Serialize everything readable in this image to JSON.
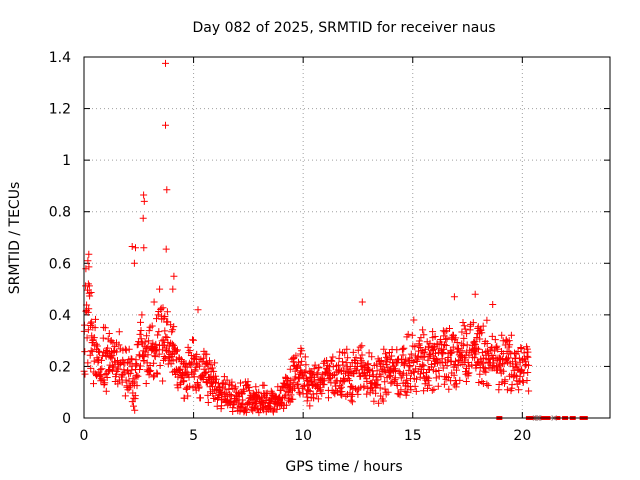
{
  "chart_data": {
    "type": "scatter",
    "title": "Day 082 of 2025, SRMTID for receiver naus",
    "xlabel": "GPS time / hours",
    "ylabel": "SRMTID / TECUs",
    "xlim": [
      0,
      24
    ],
    "ylim": [
      0,
      1.4
    ],
    "x_ticks": [
      0,
      5,
      10,
      15,
      20
    ],
    "x_tick_labels": [
      "0",
      "5",
      "10",
      "15",
      "20"
    ],
    "y_ticks": [
      0,
      0.2,
      0.4,
      0.6,
      0.8,
      1.0,
      1.2,
      1.4
    ],
    "y_tick_labels": [
      "0",
      "0.2",
      "0.4",
      "0.6",
      "0.8",
      "1",
      "1.2",
      "1.4"
    ],
    "grid": true,
    "marker": "plus",
    "marker_color": "#ff0000",
    "trend": [
      [
        0.0,
        0.28
      ],
      [
        0.15,
        0.45
      ],
      [
        0.4,
        0.32
      ],
      [
        0.7,
        0.22
      ],
      [
        1.2,
        0.24
      ],
      [
        1.7,
        0.22
      ],
      [
        2.1,
        0.17
      ],
      [
        2.3,
        0.1
      ],
      [
        2.5,
        0.32
      ],
      [
        2.8,
        0.22
      ],
      [
        3.2,
        0.28
      ],
      [
        3.6,
        0.3
      ],
      [
        3.9,
        0.28
      ],
      [
        4.3,
        0.18
      ],
      [
        4.6,
        0.16
      ],
      [
        5.0,
        0.2
      ],
      [
        5.5,
        0.18
      ],
      [
        6.0,
        0.12
      ],
      [
        6.5,
        0.08
      ],
      [
        7.0,
        0.07
      ],
      [
        7.5,
        0.08
      ],
      [
        8.0,
        0.07
      ],
      [
        8.5,
        0.05
      ],
      [
        9.0,
        0.08
      ],
      [
        9.4,
        0.14
      ],
      [
        9.7,
        0.19
      ],
      [
        10.0,
        0.16
      ],
      [
        10.4,
        0.12
      ],
      [
        10.8,
        0.14
      ],
      [
        11.2,
        0.18
      ],
      [
        11.7,
        0.16
      ],
      [
        12.2,
        0.16
      ],
      [
        12.7,
        0.2
      ],
      [
        13.2,
        0.15
      ],
      [
        13.7,
        0.17
      ],
      [
        14.2,
        0.18
      ],
      [
        14.7,
        0.2
      ],
      [
        15.2,
        0.22
      ],
      [
        15.7,
        0.2
      ],
      [
        16.2,
        0.24
      ],
      [
        16.7,
        0.22
      ],
      [
        17.2,
        0.24
      ],
      [
        17.7,
        0.26
      ],
      [
        18.2,
        0.25
      ],
      [
        18.6,
        0.24
      ],
      [
        19.0,
        0.2
      ],
      [
        19.4,
        0.22
      ],
      [
        19.8,
        0.2
      ],
      [
        20.3,
        0.2
      ]
    ],
    "outliers": [
      {
        "x": 3.72,
        "y": 1.375
      },
      {
        "x": 3.72,
        "y": 1.135
      },
      {
        "x": 3.78,
        "y": 0.885
      },
      {
        "x": 3.75,
        "y": 0.655
      },
      {
        "x": 2.72,
        "y": 0.865
      },
      {
        "x": 2.75,
        "y": 0.84
      },
      {
        "x": 2.7,
        "y": 0.775
      },
      {
        "x": 2.73,
        "y": 0.66
      },
      {
        "x": 2.2,
        "y": 0.665
      },
      {
        "x": 2.35,
        "y": 0.66
      },
      {
        "x": 2.3,
        "y": 0.6
      },
      {
        "x": 0.22,
        "y": 0.635
      },
      {
        "x": 0.18,
        "y": 0.61
      },
      {
        "x": 0.2,
        "y": 0.52
      },
      {
        "x": 4.1,
        "y": 0.55
      },
      {
        "x": 4.05,
        "y": 0.5
      },
      {
        "x": 3.45,
        "y": 0.5
      },
      {
        "x": 3.2,
        "y": 0.45
      },
      {
        "x": 12.7,
        "y": 0.45
      },
      {
        "x": 17.85,
        "y": 0.48
      },
      {
        "x": 16.9,
        "y": 0.47
      },
      {
        "x": 18.65,
        "y": 0.44
      },
      {
        "x": 15.05,
        "y": 0.38
      },
      {
        "x": 5.2,
        "y": 0.42
      }
    ],
    "zero_markers_x": [
      18.95,
      20.3,
      20.4,
      20.5,
      20.85,
      20.95,
      21.05,
      21.15,
      21.6,
      21.95,
      22.3,
      22.75,
      22.85
    ],
    "cross_markers_x": [
      20.6,
      20.7,
      20.75,
      21.45
    ]
  }
}
